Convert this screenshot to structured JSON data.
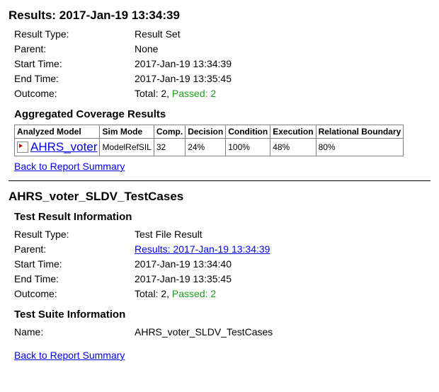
{
  "top": {
    "title": "Results: 2017-Jan-19 13:34:39",
    "rows": {
      "result_type_label": "Result Type:",
      "result_type_value": "Result Set",
      "parent_label": "Parent:",
      "parent_value": "None",
      "start_label": "Start Time:",
      "start_value": "2017-Jan-19 13:34:39",
      "end_label": "End Time:",
      "end_value": "2017-Jan-19 13:35:45",
      "outcome_label": "Outcome:",
      "outcome_total": "Total: 2, ",
      "outcome_passed": "Passed: 2"
    },
    "agg_title": "Aggregated Coverage Results",
    "table": {
      "headers": {
        "model": "Analyzed Model",
        "sim": "Sim Mode",
        "comp": "Comp.",
        "decision": "Decision",
        "condition": "Condition",
        "execution": "Execution",
        "relational": "Relational Boundary"
      },
      "row": {
        "model": "AHRS_voter",
        "sim": "ModelRefSIL",
        "comp": "32",
        "decision": "24%",
        "condition": "100%",
        "execution": "48%",
        "relational": "80%"
      }
    },
    "back_link": "Back to Report Summary"
  },
  "bottom": {
    "title": "AHRS_voter_SLDV_TestCases",
    "result_info_title": "Test Result Information",
    "rows": {
      "result_type_label": "Result Type:",
      "result_type_value": "Test File Result",
      "parent_label": "Parent:",
      "parent_link": "Results: 2017-Jan-19 13:34:39",
      "start_label": "Start Time:",
      "start_value": "2017-Jan-19 13:34:40",
      "end_label": "End Time:",
      "end_value": "2017-Jan-19 13:35:45",
      "outcome_label": "Outcome:",
      "outcome_total": "Total: 2, ",
      "outcome_passed": "Passed: 2"
    },
    "suite_info_title": "Test Suite Information",
    "suite_name_label": "Name:",
    "suite_name_value": "AHRS_voter_SLDV_TestCases",
    "back_link": "Back to Report Summary"
  }
}
